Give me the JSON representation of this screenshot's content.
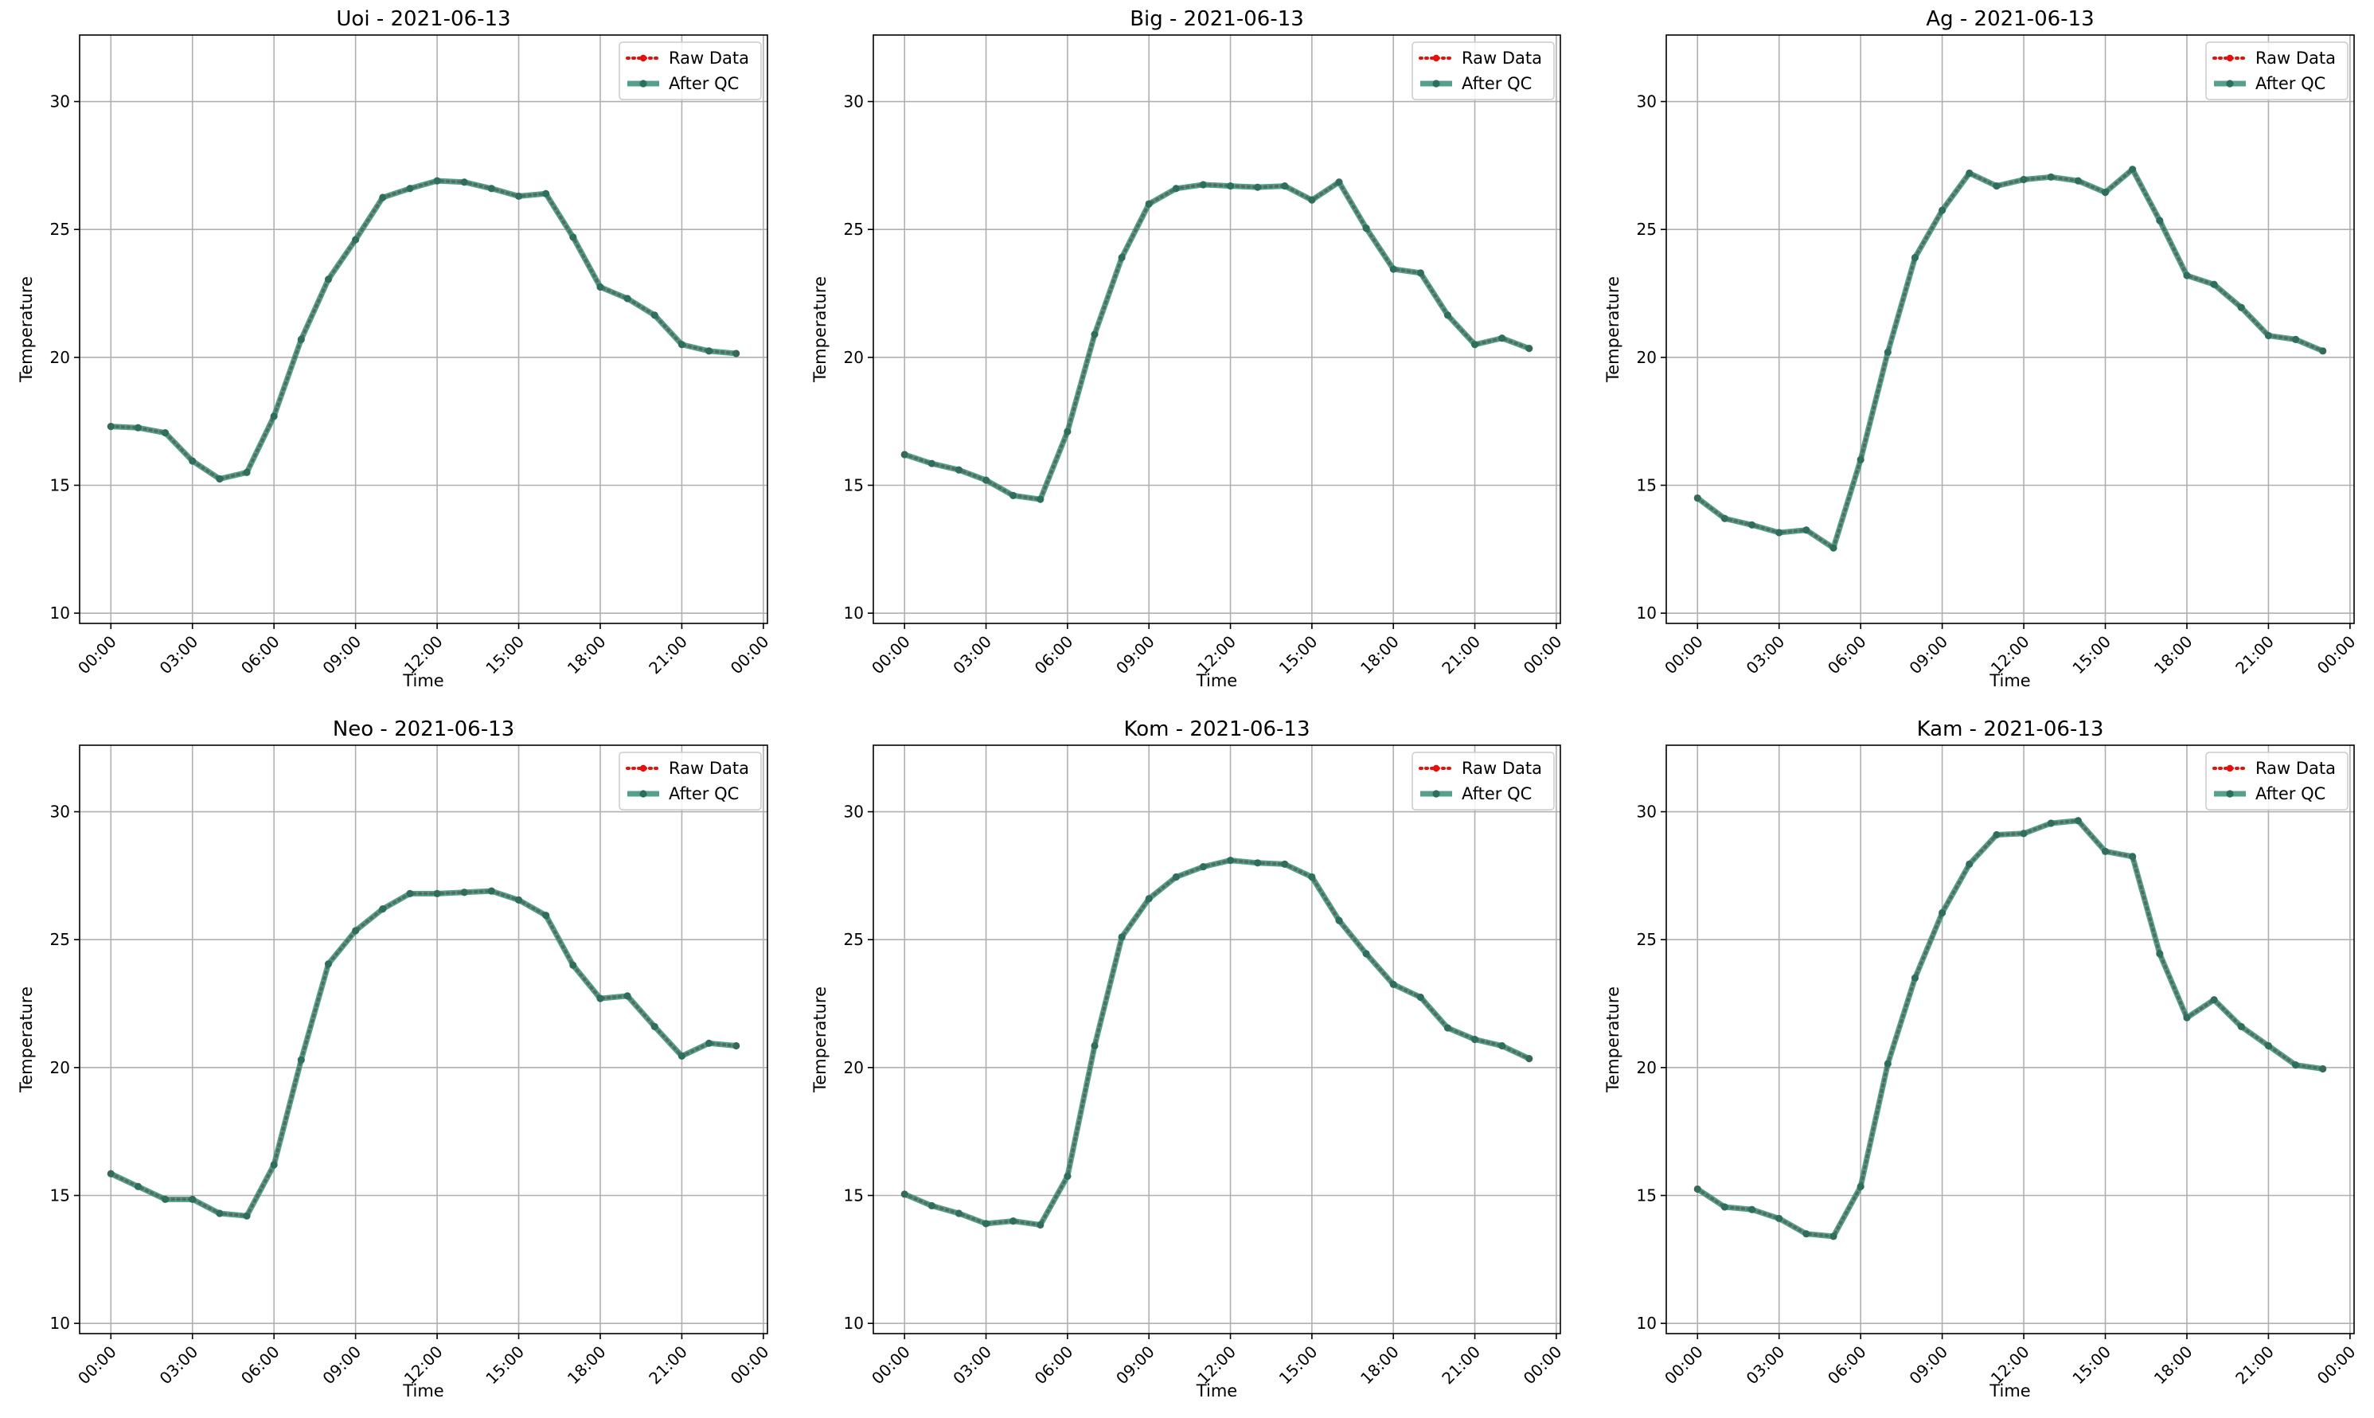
{
  "chart_data": [
    {
      "type": "line",
      "title": "Uoi - 2021-06-13",
      "xlabel": "Time",
      "ylabel": "Temperature",
      "x_tick_labels": [
        "00:00",
        "03:00",
        "06:00",
        "09:00",
        "12:00",
        "15:00",
        "18:00",
        "21:00",
        "00:00"
      ],
      "y_ticks": [
        10,
        15,
        20,
        25,
        30
      ],
      "ylim": [
        9.6,
        32.6
      ],
      "grid": true,
      "legend_position": "top-right",
      "x_hours": [
        0,
        1,
        2,
        3,
        4,
        5,
        6,
        7,
        8,
        9,
        10,
        11,
        12,
        13,
        14,
        15,
        16,
        17,
        18,
        19,
        20,
        21,
        22,
        23
      ],
      "series": [
        {
          "name": "Raw Data",
          "color": "#e8100c",
          "style": "dotted-red-markers",
          "values": [
            17.3,
            17.25,
            17.05,
            15.95,
            15.25,
            15.5,
            17.7,
            20.7,
            23.05,
            24.6,
            26.25,
            26.6,
            26.9,
            26.85,
            26.6,
            26.3,
            26.4,
            24.7,
            22.75,
            22.3,
            21.65,
            20.5,
            20.25,
            20.15
          ]
        },
        {
          "name": "After QC",
          "color": "#2e8b73",
          "style": "solid-green",
          "values": [
            17.3,
            17.25,
            17.05,
            15.95,
            15.25,
            15.5,
            17.7,
            20.7,
            23.05,
            24.6,
            26.25,
            26.6,
            26.9,
            26.85,
            26.6,
            26.3,
            26.4,
            24.7,
            22.75,
            22.3,
            21.65,
            20.5,
            20.25,
            20.15
          ]
        }
      ]
    },
    {
      "type": "line",
      "title": "Big - 2021-06-13",
      "xlabel": "Time",
      "ylabel": "Temperature",
      "x_tick_labels": [
        "00:00",
        "03:00",
        "06:00",
        "09:00",
        "12:00",
        "15:00",
        "18:00",
        "21:00",
        "00:00"
      ],
      "y_ticks": [
        10,
        15,
        20,
        25,
        30
      ],
      "ylim": [
        9.6,
        32.6
      ],
      "grid": true,
      "legend_position": "top-right",
      "x_hours": [
        0,
        1,
        2,
        3,
        4,
        5,
        6,
        7,
        8,
        9,
        10,
        11,
        12,
        13,
        14,
        15,
        16,
        17,
        18,
        19,
        20,
        21,
        22,
        23
      ],
      "series": [
        {
          "name": "Raw Data",
          "color": "#e8100c",
          "style": "dotted-red-markers",
          "values": [
            16.2,
            15.85,
            15.6,
            15.2,
            14.6,
            14.45,
            17.1,
            20.9,
            23.9,
            26.0,
            26.6,
            26.75,
            26.7,
            26.65,
            26.7,
            26.15,
            26.85,
            25.05,
            23.45,
            23.3,
            21.65,
            20.5,
            20.75,
            20.35
          ]
        },
        {
          "name": "After QC",
          "color": "#2e8b73",
          "style": "solid-green",
          "values": [
            16.2,
            15.85,
            15.6,
            15.2,
            14.6,
            14.45,
            17.1,
            20.9,
            23.9,
            26.0,
            26.6,
            26.75,
            26.7,
            26.65,
            26.7,
            26.15,
            26.85,
            25.05,
            23.45,
            23.3,
            21.65,
            20.5,
            20.75,
            20.35
          ]
        }
      ]
    },
    {
      "type": "line",
      "title": "Ag - 2021-06-13",
      "xlabel": "Time",
      "ylabel": "Temperature",
      "x_tick_labels": [
        "00:00",
        "03:00",
        "06:00",
        "09:00",
        "12:00",
        "15:00",
        "18:00",
        "21:00",
        "00:00"
      ],
      "y_ticks": [
        10,
        15,
        20,
        25,
        30
      ],
      "ylim": [
        9.6,
        32.6
      ],
      "grid": true,
      "legend_position": "top-right",
      "x_hours": [
        0,
        1,
        2,
        3,
        4,
        5,
        6,
        7,
        8,
        9,
        10,
        11,
        12,
        13,
        14,
        15,
        16,
        17,
        18,
        19,
        20,
        21,
        22,
        23
      ],
      "series": [
        {
          "name": "Raw Data",
          "color": "#e8100c",
          "style": "dotted-red-markers",
          "values": [
            14.5,
            13.7,
            13.45,
            13.15,
            13.25,
            12.55,
            16.0,
            20.2,
            23.9,
            25.75,
            27.2,
            26.7,
            26.95,
            27.05,
            26.9,
            26.45,
            27.35,
            25.35,
            23.2,
            22.85,
            21.95,
            20.85,
            20.7,
            20.25
          ]
        },
        {
          "name": "After QC",
          "color": "#2e8b73",
          "style": "solid-green",
          "values": [
            14.5,
            13.7,
            13.45,
            13.15,
            13.25,
            12.55,
            16.0,
            20.2,
            23.9,
            25.75,
            27.2,
            26.7,
            26.95,
            27.05,
            26.9,
            26.45,
            27.35,
            25.35,
            23.2,
            22.85,
            21.95,
            20.85,
            20.7,
            20.25
          ]
        }
      ]
    },
    {
      "type": "line",
      "title": "Neo - 2021-06-13",
      "xlabel": "Time",
      "ylabel": "Temperature",
      "x_tick_labels": [
        "00:00",
        "03:00",
        "06:00",
        "09:00",
        "12:00",
        "15:00",
        "18:00",
        "21:00",
        "00:00"
      ],
      "y_ticks": [
        10,
        15,
        20,
        25,
        30
      ],
      "ylim": [
        9.6,
        32.6
      ],
      "grid": true,
      "legend_position": "top-right",
      "x_hours": [
        0,
        1,
        2,
        3,
        4,
        5,
        6,
        7,
        8,
        9,
        10,
        11,
        12,
        13,
        14,
        15,
        16,
        17,
        18,
        19,
        20,
        21,
        22,
        23
      ],
      "series": [
        {
          "name": "Raw Data",
          "color": "#e8100c",
          "style": "dotted-red-markers",
          "values": [
            15.85,
            15.35,
            14.85,
            14.85,
            14.3,
            14.2,
            16.2,
            20.3,
            24.05,
            25.35,
            26.2,
            26.8,
            26.8,
            26.85,
            26.9,
            26.55,
            25.95,
            24.0,
            22.7,
            22.8,
            21.6,
            20.45,
            20.95,
            20.85
          ]
        },
        {
          "name": "After QC",
          "color": "#2e8b73",
          "style": "solid-green",
          "values": [
            15.85,
            15.35,
            14.85,
            14.85,
            14.3,
            14.2,
            16.2,
            20.3,
            24.05,
            25.35,
            26.2,
            26.8,
            26.8,
            26.85,
            26.9,
            26.55,
            25.95,
            24.0,
            22.7,
            22.8,
            21.6,
            20.45,
            20.95,
            20.85
          ]
        }
      ]
    },
    {
      "type": "line",
      "title": "Kom - 2021-06-13",
      "xlabel": "Time",
      "ylabel": "Temperature",
      "x_tick_labels": [
        "00:00",
        "03:00",
        "06:00",
        "09:00",
        "12:00",
        "15:00",
        "18:00",
        "21:00",
        "00:00"
      ],
      "y_ticks": [
        10,
        15,
        20,
        25,
        30
      ],
      "ylim": [
        9.6,
        32.6
      ],
      "grid": true,
      "legend_position": "top-right",
      "x_hours": [
        0,
        1,
        2,
        3,
        4,
        5,
        6,
        7,
        8,
        9,
        10,
        11,
        12,
        13,
        14,
        15,
        16,
        17,
        18,
        19,
        20,
        21,
        22,
        23
      ],
      "series": [
        {
          "name": "Raw Data",
          "color": "#e8100c",
          "style": "dotted-red-markers",
          "values": [
            15.05,
            14.6,
            14.3,
            13.9,
            14.0,
            13.85,
            15.75,
            20.85,
            25.1,
            26.6,
            27.45,
            27.85,
            28.1,
            28.0,
            27.95,
            27.45,
            25.75,
            24.45,
            23.25,
            22.75,
            21.55,
            21.1,
            20.85,
            20.35
          ]
        },
        {
          "name": "After QC",
          "color": "#2e8b73",
          "style": "solid-green",
          "values": [
            15.05,
            14.6,
            14.3,
            13.9,
            14.0,
            13.85,
            15.75,
            20.85,
            25.1,
            26.6,
            27.45,
            27.85,
            28.1,
            28.0,
            27.95,
            27.45,
            25.75,
            24.45,
            23.25,
            22.75,
            21.55,
            21.1,
            20.85,
            20.35
          ]
        }
      ]
    },
    {
      "type": "line",
      "title": "Kam - 2021-06-13",
      "xlabel": "Time",
      "ylabel": "Temperature",
      "x_tick_labels": [
        "00:00",
        "03:00",
        "06:00",
        "09:00",
        "12:00",
        "15:00",
        "18:00",
        "21:00",
        "00:00"
      ],
      "y_ticks": [
        10,
        15,
        20,
        25,
        30
      ],
      "ylim": [
        9.6,
        32.6
      ],
      "grid": true,
      "legend_position": "top-right",
      "x_hours": [
        0,
        1,
        2,
        3,
        4,
        5,
        6,
        7,
        8,
        9,
        10,
        11,
        12,
        13,
        14,
        15,
        16,
        17,
        18,
        19,
        20,
        21,
        22,
        23
      ],
      "series": [
        {
          "name": "Raw Data",
          "color": "#e8100c",
          "style": "dotted-red-markers",
          "values": [
            15.25,
            14.55,
            14.45,
            14.1,
            13.5,
            13.4,
            15.35,
            20.15,
            23.5,
            26.05,
            27.95,
            29.1,
            29.15,
            29.55,
            29.65,
            28.45,
            28.25,
            24.45,
            21.95,
            22.65,
            21.6,
            20.85,
            20.1,
            19.95
          ]
        },
        {
          "name": "After QC",
          "color": "#2e8b73",
          "style": "solid-green",
          "values": [
            15.25,
            14.55,
            14.45,
            14.1,
            13.5,
            13.4,
            15.35,
            20.15,
            23.5,
            26.05,
            27.95,
            29.1,
            29.15,
            29.55,
            29.65,
            28.45,
            28.25,
            24.45,
            21.95,
            22.65,
            21.6,
            20.85,
            20.1,
            19.95
          ]
        }
      ]
    }
  ]
}
